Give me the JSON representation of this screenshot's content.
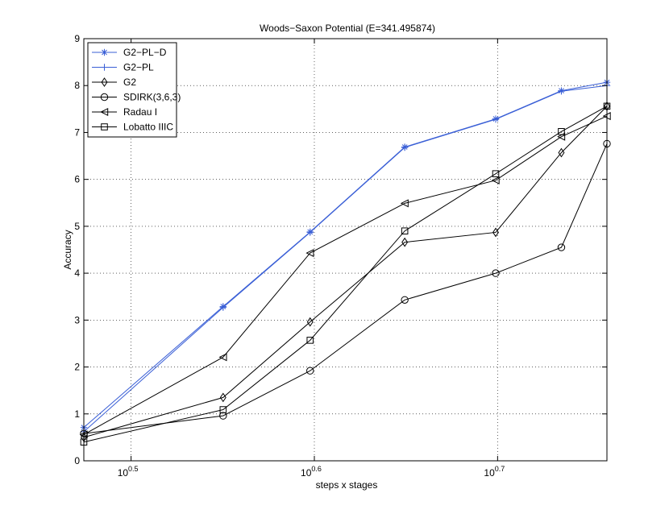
{
  "chart_data": {
    "type": "line",
    "title": "Woods−Saxon Potential (E=341.495874)",
    "xlabel": "steps x stages",
    "ylabel": "Accuracy",
    "xscale": "log10",
    "xlim": [
      2.98,
      5.75
    ],
    "ylim": [
      0,
      9
    ],
    "x_ticks": [
      {
        "value": 3.1623,
        "base": "10",
        "exp": "0.5"
      },
      {
        "value": 3.9811,
        "base": "10",
        "exp": "0.6"
      },
      {
        "value": 5.0119,
        "base": "10",
        "exp": "0.7"
      }
    ],
    "y_ticks": [
      0,
      1,
      2,
      3,
      4,
      5,
      6,
      7,
      8,
      9
    ],
    "grid": true,
    "legend_position": "top-left",
    "x": [
      2.98,
      3.55,
      3.96,
      4.46,
      5.0,
      5.43,
      5.75
    ],
    "series": [
      {
        "name": "G2−PL−D",
        "color": "#3a5fd6",
        "marker": "star",
        "values": [
          0.71,
          3.29,
          4.88,
          6.69,
          7.29,
          7.89,
          8.07
        ]
      },
      {
        "name": "G2−PL",
        "color": "#3a5fd6",
        "marker": "plus",
        "values": [
          0.62,
          3.27,
          4.87,
          6.68,
          7.28,
          7.88,
          8.0
        ]
      },
      {
        "name": "G2",
        "color": "#000000",
        "marker": "diamond",
        "values": [
          0.5,
          1.35,
          2.96,
          4.66,
          4.87,
          6.57,
          7.56
        ]
      },
      {
        "name": "SDIRK(3,6,3)",
        "color": "#000000",
        "marker": "circle",
        "values": [
          0.58,
          0.96,
          1.92,
          3.43,
          4.0,
          4.55,
          6.76
        ]
      },
      {
        "name": "Radau I",
        "color": "#000000",
        "marker": "triangle-left",
        "values": [
          0.56,
          2.21,
          4.43,
          5.49,
          5.98,
          6.91,
          7.35
        ]
      },
      {
        "name": "Lobatto IIIC",
        "color": "#000000",
        "marker": "square",
        "values": [
          0.4,
          1.09,
          2.57,
          4.9,
          6.12,
          7.02,
          7.56
        ]
      }
    ]
  }
}
